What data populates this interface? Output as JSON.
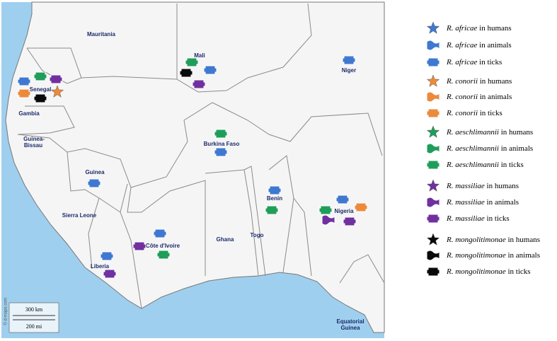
{
  "map": {
    "countries": [
      "Mauritania",
      "Mali",
      "Niger",
      "Senegal",
      "Gambia",
      "Guinea-",
      "Bissau",
      "Guinea",
      "Burkina Faso",
      "Sierra Leone",
      "Benin",
      "Togo",
      "Ghana",
      "Nigeria",
      "Côte d'Ivoire",
      "Liberia",
      "Equatorial",
      "Guinea"
    ],
    "scale": [
      "300 km",
      "200 mi"
    ],
    "credit": "© d-maps.com"
  },
  "legend": {
    "items": [
      {
        "species": "R. africae",
        "suffix": " in humans",
        "color": "#3f78d0"
      },
      {
        "species": "R. africae",
        "suffix": " in animals",
        "color": "#3f78d0"
      },
      {
        "species": "R. africae",
        "suffix": " in ticks",
        "color": "#3f78d0"
      },
      {
        "species": "R. conorii",
        "suffix": " in humans",
        "color": "#ec8a3c"
      },
      {
        "species": "R. conorii",
        "suffix": " in animals",
        "color": "#ec8a3c"
      },
      {
        "species": "R. conorii",
        "suffix": " in ticks",
        "color": "#ec8a3c"
      },
      {
        "species": "R. aeschlimannii",
        "suffix": " in humans",
        "color": "#1f9d5a"
      },
      {
        "species": "R. aeschlimannii",
        "suffix": " in animals",
        "color": "#1f9d5a"
      },
      {
        "species": "R. aeschlimannii",
        "suffix": " in ticks",
        "color": "#1f9d5a"
      },
      {
        "species": "R. massiliae",
        "suffix": " in humans",
        "color": "#7030a0"
      },
      {
        "species": "R. massiliae",
        "suffix": " in animals",
        "color": "#7030a0"
      },
      {
        "species": "R. massiliae",
        "suffix": " in ticks",
        "color": "#7030a0"
      },
      {
        "species": "R. mongolitimonae",
        "suffix": "  in humans",
        "color": "#0a0a0a"
      },
      {
        "species": "R. mongolitimonae",
        "suffix": "  in animals",
        "color": "#0a0a0a"
      },
      {
        "species": "R. mongolitimonae",
        "suffix": "  in ticks",
        "color": "#0a0a0a"
      }
    ]
  }
}
